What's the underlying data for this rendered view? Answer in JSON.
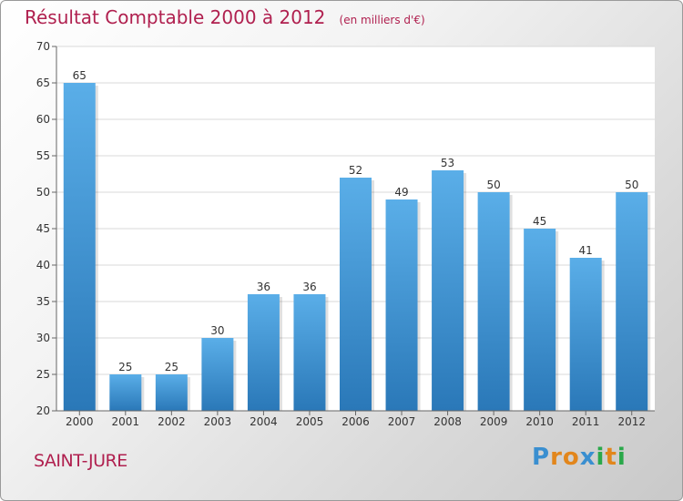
{
  "title": {
    "main": "Résultat Comptable 2000 à 2012",
    "sub": "(en milliers d'€)"
  },
  "city": "SAINT-JURE",
  "logo": {
    "letters": [
      "P",
      "r",
      "o",
      "x",
      "i",
      "t",
      "i"
    ],
    "colors": [
      "#3a8fd0",
      "#e2861c",
      "#e2861c",
      "#3a8fd0",
      "#2aa84a",
      "#e2861c",
      "#2aa84a"
    ]
  },
  "colors": {
    "bar_top": "#5aaee8",
    "bar_bottom": "#2a78b8",
    "grid": "#d9d9d9",
    "title": "#b0204f"
  },
  "chart_data": {
    "type": "bar",
    "title": "Résultat Comptable 2000 à 2012",
    "subtitle": "(en milliers d'€)",
    "xlabel": "",
    "ylabel": "",
    "categories": [
      "2000",
      "2001",
      "2002",
      "2003",
      "2004",
      "2005",
      "2006",
      "2007",
      "2008",
      "2009",
      "2010",
      "2011",
      "2012"
    ],
    "values": [
      65,
      25,
      25,
      30,
      36,
      36,
      52,
      49,
      53,
      50,
      45,
      41,
      50
    ],
    "data_labels": [
      "65",
      "25",
      "25",
      "30",
      "36",
      "36",
      "52",
      "49",
      "53",
      "50",
      "45",
      "41",
      "50"
    ],
    "ylim": [
      20,
      70
    ],
    "yticks": [
      "20",
      "25",
      "30",
      "35",
      "40",
      "45",
      "50",
      "55",
      "60",
      "65",
      "70"
    ],
    "grid": true
  }
}
